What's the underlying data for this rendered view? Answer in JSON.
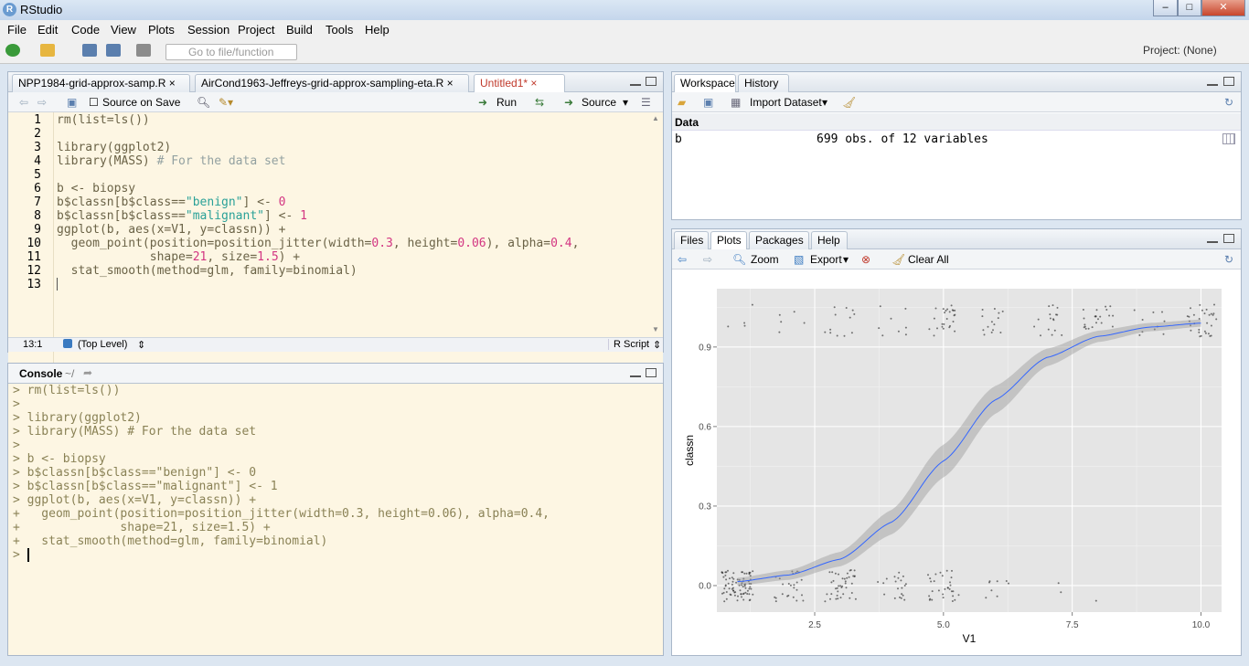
{
  "window": {
    "title": "RStudio",
    "min": "–",
    "max": "□",
    "close": "✕"
  },
  "menu": [
    "File",
    "Edit",
    "Code",
    "View",
    "Plots",
    "Session",
    "Project",
    "Build",
    "Tools",
    "Help"
  ],
  "toolbar": {
    "goto_placeholder": "Go to file/function",
    "project": "Project: (None)"
  },
  "editor": {
    "tabs": [
      "NPP1984-grid-approx-samp.R",
      "AirCond1963-Jeffreys-grid-approx-sampling-eta.R",
      "Untitled1*"
    ],
    "source_on_save": "Source on Save",
    "run": "Run",
    "source": "Source",
    "lines": [
      "1",
      "2",
      "3",
      "4",
      "5",
      "6",
      "7",
      "8",
      "9",
      "10",
      "11",
      "12",
      "13"
    ],
    "status_pos": "13:1",
    "status_scope": "(Top Level)",
    "status_type": "R Script"
  },
  "console": {
    "title": "Console",
    "path": "~/"
  },
  "workspace": {
    "tabs": [
      "Workspace",
      "History"
    ],
    "import": "Import Dataset",
    "section": "Data",
    "var_name": "b",
    "var_desc": "699 obs. of 12 variables"
  },
  "files": {
    "tabs": [
      "Files",
      "Plots",
      "Packages",
      "Help"
    ],
    "zoom": "Zoom",
    "export": "Export",
    "clear": "Clear All"
  },
  "chart_data": {
    "type": "scatter",
    "xlabel": "V1",
    "ylabel": "classn",
    "xticks": [
      "2.5",
      "5.0",
      "7.5",
      "10.0"
    ],
    "yticks": [
      "0.0",
      "0.3",
      "0.6",
      "0.9"
    ],
    "xlim": [
      0.6,
      10.4
    ],
    "ylim": [
      -0.1,
      1.12
    ],
    "series": [
      {
        "values": [
          {
            "x": 1,
            "y": 0.015
          },
          {
            "x": 2,
            "y": 0.04
          },
          {
            "x": 3,
            "y": 0.1
          },
          {
            "x": 4,
            "y": 0.24
          },
          {
            "x": 5,
            "y": 0.47
          },
          {
            "x": 6,
            "y": 0.7
          },
          {
            "x": 7,
            "y": 0.86
          },
          {
            "x": 8,
            "y": 0.94
          },
          {
            "x": 9,
            "y": 0.975
          },
          {
            "x": 10,
            "y": 0.99
          }
        ]
      }
    ],
    "smooth_color": "#3366ff",
    "panel_bg": "#e5e5e5"
  }
}
